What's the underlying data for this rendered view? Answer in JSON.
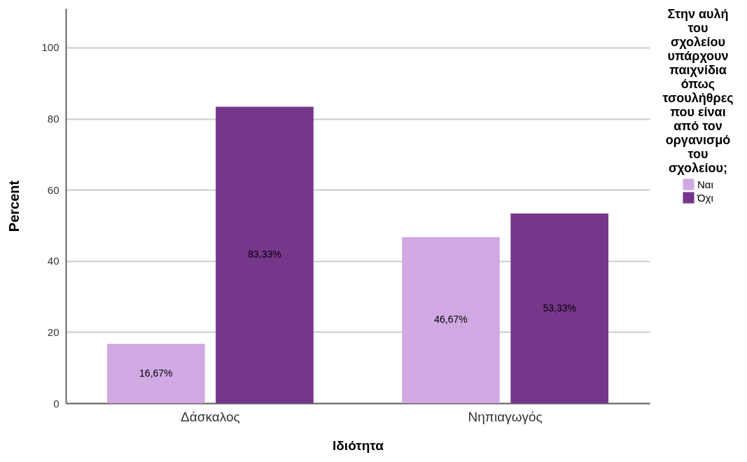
{
  "chart_data": {
    "type": "bar",
    "xlabel": "Ιδιότητα",
    "ylabel": "Percent",
    "legend_title": "Στην αυλή του σχολείου υπάρχουν παιχνίδια όπως τσουλήθρες που είναι από τον οργανισμό του σχολείου;",
    "categories": [
      "Δάσκαλος",
      "Νηπιαγωγός"
    ],
    "series": [
      {
        "name": "Ναι",
        "color": "#d0a9e3",
        "values": [
          16.67,
          46.67
        ],
        "value_labels": [
          "16,67%",
          "46,67%"
        ]
      },
      {
        "name": "Όχι",
        "color": "#76378b",
        "values": [
          83.33,
          53.33
        ],
        "value_labels": [
          "83,33%",
          "53,33%"
        ]
      }
    ],
    "ylim": [
      0,
      111
    ],
    "yticks": [
      0,
      20,
      40,
      60,
      80,
      100
    ],
    "grid": "y",
    "legend": "top right"
  }
}
